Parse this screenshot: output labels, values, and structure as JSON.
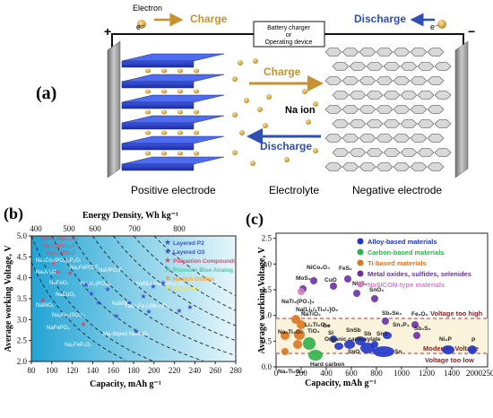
{
  "panel_a": {
    "label": "(a)",
    "electron_left": "Electron",
    "e_left": "e⁻",
    "e_right": "e⁻",
    "charge_top": "Charge",
    "discharge_top": "Discharge",
    "device_line1": "Battery charger",
    "device_line2": "or",
    "device_line3": "Operating device",
    "plus": "+",
    "minus": "−",
    "charge_mid": "Charge",
    "discharge_mid": "Discharge",
    "ion_label": "Na ion",
    "positive_label": "Positive electrode",
    "electrolyte_label": "Electrolyte",
    "negative_label": "Negative electrode",
    "colors": {
      "charge": "#c9912e",
      "discharge": "#2f4fb5"
    }
  },
  "panel_b": {
    "label": "(b)",
    "top_axis_label": "Energy Density, Wh kg⁻¹",
    "top_ticks": [
      "400",
      "500",
      "600",
      "700",
      "800"
    ],
    "x_label": "Capacity, mAh g⁻¹",
    "y_label": "Average working Voltage, V",
    "x_ticks": [
      "80",
      "100",
      "120",
      "140",
      "160",
      "180",
      "200",
      "220",
      "240",
      "260",
      "280"
    ],
    "y_ticks": [
      "2.0",
      "2.5",
      "3.0",
      "3.5",
      "4.0",
      "4.5",
      "5.0"
    ],
    "legend": [
      {
        "text": "Layered P2",
        "color": "#3a4fd6"
      },
      {
        "text": "Layered O3",
        "color": "#3a4fd6"
      },
      {
        "text": "Polyanion Compounds",
        "color": "#e04560"
      },
      {
        "text": "Prussian Blue Analog",
        "color": "#46c9a4"
      },
      {
        "text": "Na-rich Oxides",
        "color": "#f0a640"
      },
      {
        "text": "Organics",
        "color": "#f5e64a"
      }
    ],
    "labels": [
      {
        "t": "NaNi₀.₅Mn₀.₅O₂",
        "c": "#e04560"
      },
      {
        "t": "Na₃V₂(PO₄)₂F₃",
        "c": "#e04560"
      },
      {
        "t": "Na₂CoPO₄F",
        "c": "#e04560"
      },
      {
        "t": "Na₃Ni₂O₆",
        "c": "#ffffff"
      },
      {
        "t": "Na₂FePO₄F",
        "c": "#ffffff"
      },
      {
        "t": "NaFeO₂",
        "c": "#ffffff"
      },
      {
        "t": "Na₂V₂(PO₄)₃",
        "c": "#ffffff"
      },
      {
        "t": "NaFePO₄",
        "c": "#ffffff"
      },
      {
        "t": "NaNiO₂",
        "c": "#ffffff"
      },
      {
        "t": "NaMnO₂",
        "c": "#ffffff"
      },
      {
        "t": "NaVPO₄F",
        "c": "#ffffff"
      },
      {
        "t": "Na₂FeP₂O₇",
        "c": "#ffffff"
      },
      {
        "t": "NaCoO₂",
        "c": "#ffffff"
      },
      {
        "t": "Mg-doped NaMnO₂",
        "c": "#ffffff"
      },
      {
        "t": "Na₂/₃Fe₁/₂Mn₁/₂O₂",
        "c": "#ffffff"
      },
      {
        "t": "NaNi₁/₃Fe₁/₃Mn₁/₃O₂",
        "c": "#ffffff"
      },
      {
        "t": "Na₂Fe₂(SO₄)₃",
        "c": "#ffffff"
      },
      {
        "t": "Na₄Co₃(PO₄)₂P₂O₇",
        "c": "#ffffff"
      }
    ]
  },
  "panel_c": {
    "label": "(c)",
    "x_label": "Capacity, mAh g⁻¹",
    "y_label": "Average working Voltage, V",
    "x_ticks": [
      "0",
      "200",
      "400",
      "600",
      "800",
      "1000",
      "1200",
      "1400"
    ],
    "x_extra": "20002500",
    "y_ticks": [
      "0.0",
      "0.5",
      "1.0",
      "1.5",
      "2.0",
      "2.5"
    ],
    "legend": [
      {
        "text": "Alloy-based materials",
        "color": "#1f35c8"
      },
      {
        "text": "Carbon-based materials",
        "color": "#2db24a"
      },
      {
        "text": "Ti-based materials",
        "color": "#d9761e"
      },
      {
        "text": "Metal oxides, sulfides, selenides",
        "color": "#6b2fa5"
      },
      {
        "text": "NaSICON-type materials",
        "color": "#d27fc2"
      }
    ],
    "limit_high": "Voltage too high",
    "limit_mid": "Moderate Voltage",
    "limit_low": "Voltage too low",
    "materials": [
      "MoS₂",
      "NiCo₂O₄",
      "CuO",
      "FeS₂",
      "Ni₃S₂",
      "SnO₂",
      "Sb₂Se₃",
      "Fe₂O₃",
      "Sb₂S₃",
      "NaTi₂(PO₄)₃",
      "Na₂Ti₃O₇",
      "Na[Li₁/₃Ti₅/₃]O₂",
      "NaTiO₂",
      "Li₄Ti₅O₁₂",
      "TiO₂",
      "Na₂Ti₆O₁₃",
      "Ge",
      "Organic carboxylate",
      "Hard carbon",
      "Si",
      "P",
      "Ni₃P",
      "Sb",
      "SnSb",
      "Sn₄P₃",
      "SnS",
      "SnO",
      "Sn"
    ]
  }
}
